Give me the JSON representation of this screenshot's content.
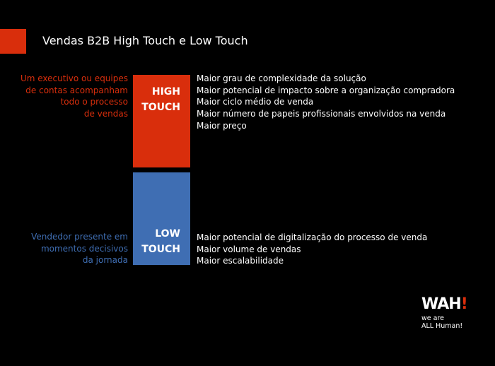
{
  "title": "Vendas B2B High Touch e Low Touch",
  "colors": {
    "high": "#d92e0c",
    "low": "#3f6eb3"
  },
  "high": {
    "label": [
      "HIGH",
      "TOUCH"
    ],
    "description": [
      "Um executivo ou equipes",
      "de contas acompanham",
      "todo o processo",
      "de vendas"
    ],
    "items": [
      "Maior grau de complexidade da solução",
      "Maior potencial de impacto sobre a organização compradora",
      "Maior ciclo médio de venda",
      "Maior número de papeis profissionais envolvidos na venda",
      "Maior preço"
    ]
  },
  "low": {
    "label": [
      "LOW",
      "TOUCH"
    ],
    "description": [
      "Vendedor presente em",
      "momentos decisivos",
      "da jornada"
    ],
    "items": [
      "Maior potencial de digitalização do processo de venda",
      "Maior volume de vendas",
      "Maior escalabilidade"
    ]
  },
  "logo": {
    "mark": "WAH",
    "mark_accent": "!",
    "tagline": [
      "we are",
      "ALL Human!"
    ]
  }
}
